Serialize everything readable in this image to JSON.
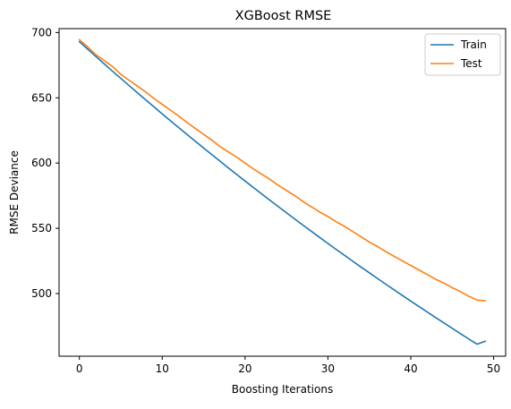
{
  "chart_data": {
    "type": "line",
    "title": "XGBoost RMSE",
    "xlabel": "Boosting Iterations",
    "ylabel": "RMSE Deviance",
    "xlim": [
      -2.45,
      51.45
    ],
    "ylim": [
      452,
      703
    ],
    "xticks": [
      0,
      10,
      20,
      30,
      40,
      50
    ],
    "yticks": [
      500,
      550,
      600,
      650,
      700
    ],
    "grid": false,
    "legend_position": "top-right",
    "x": [
      0,
      1,
      2,
      3,
      4,
      5,
      6,
      7,
      8,
      9,
      10,
      11,
      12,
      13,
      14,
      15,
      16,
      17,
      18,
      19,
      20,
      21,
      22,
      23,
      24,
      25,
      26,
      27,
      28,
      29,
      30,
      31,
      32,
      33,
      34,
      35,
      36,
      37,
      38,
      39,
      40,
      41,
      42,
      43,
      44,
      45,
      46,
      47,
      48,
      49
    ],
    "series": [
      {
        "name": "Train",
        "color": "#1f77b4",
        "values": [
          693.0,
          687.3,
          681.6,
          676.0,
          670.4,
          664.9,
          659.4,
          653.9,
          648.5,
          643.1,
          637.7,
          632.4,
          627.1,
          621.9,
          616.7,
          611.5,
          606.4,
          601.3,
          596.2,
          591.2,
          586.2,
          581.3,
          576.4,
          571.5,
          566.7,
          561.9,
          557.1,
          552.4,
          547.7,
          543.0,
          538.4,
          533.8,
          529.3,
          524.8,
          520.3,
          515.9,
          511.5,
          507.1,
          502.8,
          498.5,
          494.2,
          490.0,
          485.8,
          481.6,
          477.5,
          473.4,
          469.3,
          465.2,
          461.2,
          463.5
        ]
      },
      {
        "name": "Test",
        "color": "#ff7f0e",
        "values": [
          694.5,
          689.0,
          683.0,
          678.5,
          674.0,
          668.0,
          663.5,
          659.0,
          654.5,
          649.5,
          645.0,
          640.5,
          636.0,
          631.0,
          626.5,
          622.0,
          617.5,
          612.5,
          608.5,
          604.5,
          600.0,
          595.5,
          591.5,
          587.5,
          583.0,
          579.0,
          575.0,
          570.5,
          566.5,
          562.5,
          559.0,
          555.0,
          551.5,
          547.5,
          543.5,
          539.5,
          536.0,
          532.0,
          528.5,
          525.0,
          521.5,
          518.0,
          514.5,
          511.0,
          508.0,
          504.5,
          501.5,
          498.0,
          495.0,
          494.5
        ]
      }
    ]
  }
}
